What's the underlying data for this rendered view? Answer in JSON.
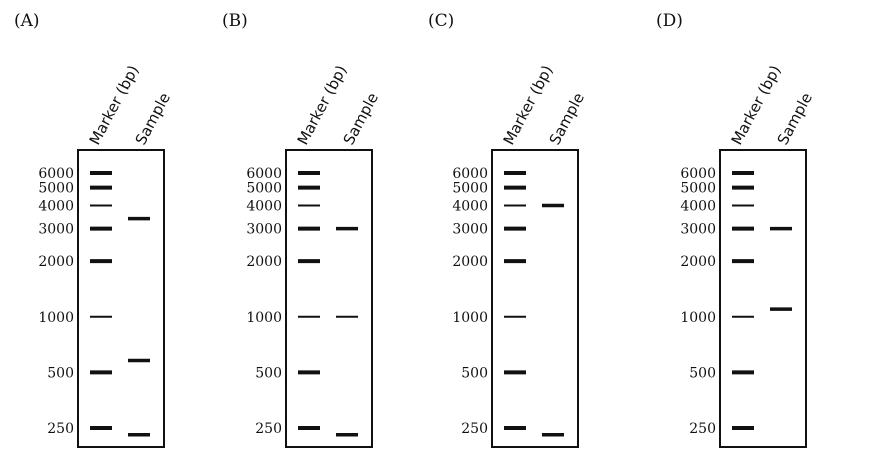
{
  "lane_headers": [
    "Marker (bp)",
    "Sample"
  ],
  "marker_sizes": [
    {
      "label": "6000",
      "bp": 6000,
      "thick": true
    },
    {
      "label": "5000",
      "bp": 5000,
      "thick": true
    },
    {
      "label": "4000",
      "bp": 4000,
      "thick": false
    },
    {
      "label": "3000",
      "bp": 3000,
      "thick": true
    },
    {
      "label": "2000",
      "bp": 2000,
      "thick": true
    },
    {
      "label": "1000",
      "bp": 1000,
      "thick": false
    },
    {
      "label": "500",
      "bp": 500,
      "thick": true
    },
    {
      "label": "250",
      "bp": 250,
      "thick": true
    }
  ],
  "panels": [
    {
      "label": "(A)",
      "sample_bands": [
        {
          "bp": 3400,
          "thick": true
        },
        {
          "bp": 580,
          "thick": true
        },
        {
          "bp": 230,
          "thick": true
        }
      ]
    },
    {
      "label": "(B)",
      "sample_bands": [
        {
          "bp": 3000,
          "thick": true
        },
        {
          "bp": 1000,
          "thick": false
        },
        {
          "bp": 230,
          "thick": true
        }
      ]
    },
    {
      "label": "(C)",
      "sample_bands": [
        {
          "bp": 4000,
          "thick": true
        },
        {
          "bp": 230,
          "thick": true
        }
      ]
    },
    {
      "label": "(D)",
      "sample_bands": [
        {
          "bp": 3000,
          "thick": true
        },
        {
          "bp": 1100,
          "thick": true
        }
      ]
    }
  ]
}
